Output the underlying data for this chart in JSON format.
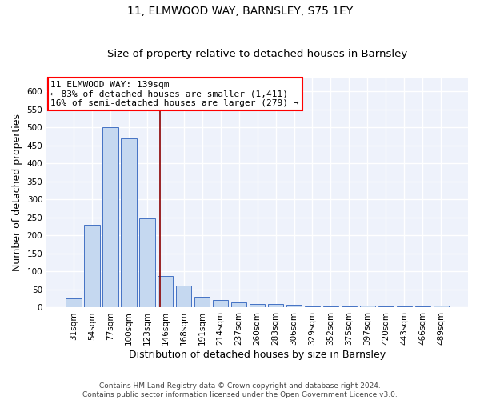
{
  "title1": "11, ELMWOOD WAY, BARNSLEY, S75 1EY",
  "title2": "Size of property relative to detached houses in Barnsley",
  "xlabel": "Distribution of detached houses by size in Barnsley",
  "ylabel": "Number of detached properties",
  "categories": [
    "31sqm",
    "54sqm",
    "77sqm",
    "100sqm",
    "123sqm",
    "146sqm",
    "168sqm",
    "191sqm",
    "214sqm",
    "237sqm",
    "260sqm",
    "283sqm",
    "306sqm",
    "329sqm",
    "352sqm",
    "375sqm",
    "397sqm",
    "420sqm",
    "443sqm",
    "466sqm",
    "489sqm"
  ],
  "values": [
    25,
    230,
    500,
    470,
    248,
    88,
    62,
    30,
    22,
    14,
    11,
    10,
    8,
    4,
    3,
    3,
    6,
    3,
    3,
    3,
    5
  ],
  "bar_color": "#c5d8f0",
  "bar_edgecolor": "#4472c4",
  "vline_x_index": 4.7,
  "vline_color": "#8b0000",
  "annotation_line1": "11 ELMWOOD WAY: 139sqm",
  "annotation_line2": "← 83% of detached houses are smaller (1,411)",
  "annotation_line3": "16% of semi-detached houses are larger (279) →",
  "annotation_box_color": "white",
  "annotation_box_edgecolor": "red",
  "footer": "Contains HM Land Registry data © Crown copyright and database right 2024.\nContains public sector information licensed under the Open Government Licence v3.0.",
  "ylim": [
    0,
    640
  ],
  "yticks": [
    0,
    50,
    100,
    150,
    200,
    250,
    300,
    350,
    400,
    450,
    500,
    550,
    600
  ],
  "bg_color": "#eef2fb",
  "grid_color": "white",
  "title1_fontsize": 10,
  "title2_fontsize": 9.5,
  "xlabel_fontsize": 9,
  "ylabel_fontsize": 9,
  "tick_fontsize": 7.5,
  "ann_fontsize": 8,
  "footer_fontsize": 6.5
}
